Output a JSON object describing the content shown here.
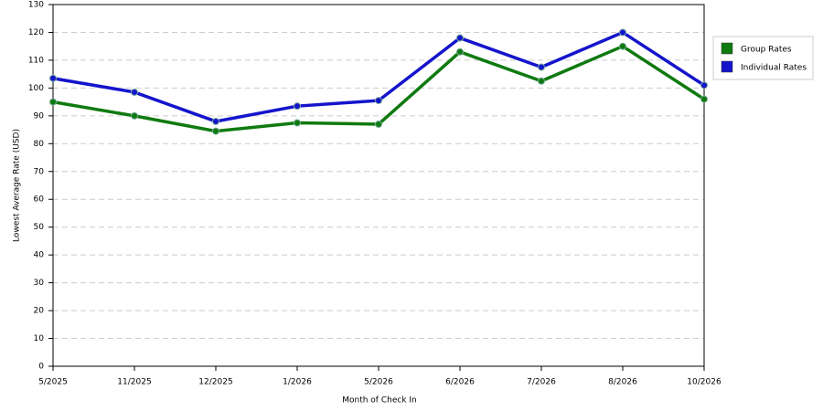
{
  "chart_data": {
    "type": "line",
    "x_label": "Month of Check In",
    "y_label": "Lowest Average Rate (USD)",
    "categories": [
      "5/2025",
      "11/2025",
      "12/2025",
      "1/2026",
      "5/2026",
      "6/2026",
      "7/2026",
      "8/2026",
      "10/2026"
    ],
    "series": [
      {
        "name": "Group Rates",
        "color": "#0f7a0f",
        "values": [
          95,
          90,
          84.5,
          87.5,
          87,
          113,
          102.5,
          115,
          96
        ]
      },
      {
        "name": "Individual Rates",
        "color": "#1414cc",
        "values": [
          103.5,
          98.5,
          88,
          93.5,
          95.5,
          118,
          107.5,
          120,
          101
        ]
      }
    ],
    "ylim": [
      0,
      130
    ],
    "yticks": [
      0,
      10,
      20,
      30,
      40,
      50,
      60,
      70,
      80,
      90,
      100,
      110,
      120,
      130
    ],
    "grid": true
  }
}
